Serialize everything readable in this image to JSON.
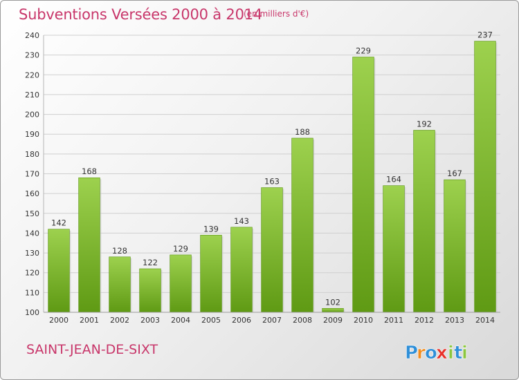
{
  "chart_data": {
    "type": "bar",
    "title": "Subventions Versées 2000 à 2014",
    "subtitle": "(en milliers d'€)",
    "categories": [
      "2000",
      "2001",
      "2002",
      "2003",
      "2004",
      "2005",
      "2006",
      "2007",
      "2008",
      "2009",
      "2010",
      "2011",
      "2012",
      "2013",
      "2014"
    ],
    "values": [
      142,
      168,
      128,
      122,
      129,
      139,
      143,
      163,
      188,
      102,
      229,
      164,
      192,
      167,
      237
    ],
    "ylim": [
      100,
      240
    ],
    "yticks": [
      100,
      110,
      120,
      130,
      140,
      150,
      160,
      170,
      180,
      190,
      200,
      210,
      220,
      230,
      240
    ],
    "grid": true,
    "bar_color": "#7dbb2e",
    "title_color": "#c8366a"
  },
  "footer": {
    "city": "SAINT-JEAN-DE-SIXT",
    "logo": [
      "P",
      "r",
      "o",
      "x",
      "i",
      "t",
      "i"
    ],
    "logo_colors": [
      "#2f8fd8",
      "#f28c1e",
      "#2f8fd8",
      "#e8312a",
      "#8cc63f",
      "#2f8fd8",
      "#8cc63f"
    ]
  }
}
